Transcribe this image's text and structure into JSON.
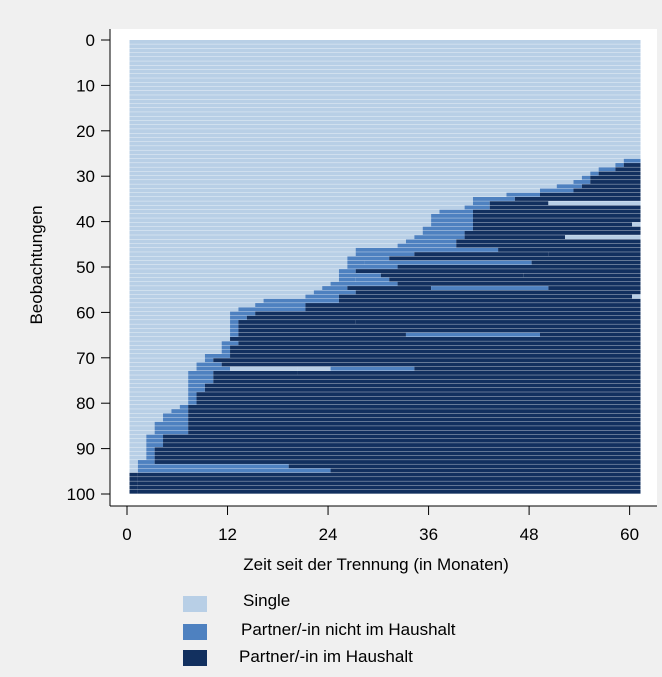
{
  "chart_data": {
    "type": "sequence-index",
    "xlabel": "Zeit seit der Trennung (in Monaten)",
    "ylabel": "Beobachtungen",
    "xlim": [
      0,
      61
    ],
    "ylim": [
      100,
      0
    ],
    "xticks": [
      0,
      12,
      24,
      36,
      48,
      60
    ],
    "yticks": [
      0,
      10,
      20,
      30,
      40,
      50,
      60,
      70,
      80,
      90,
      100
    ],
    "n_sequences": 101,
    "n_months": 61,
    "grid": false,
    "legend_position": "bottom",
    "states": [
      {
        "code": 1,
        "name": "Single",
        "color": "#b8cfe6"
      },
      {
        "code": 2,
        "name": "Partner/-in nicht im Haushalt",
        "color": "#4e81c0"
      },
      {
        "code": 3,
        "name": "Partner/-in im Haushalt",
        "color": "#12305f"
      }
    ],
    "sequences": [
      [
        [
          0,
          61,
          1
        ]
      ],
      [
        [
          0,
          61,
          1
        ]
      ],
      [
        [
          0,
          61,
          1
        ]
      ],
      [
        [
          0,
          61,
          1
        ]
      ],
      [
        [
          0,
          61,
          1
        ]
      ],
      [
        [
          0,
          61,
          1
        ]
      ],
      [
        [
          0,
          61,
          1
        ]
      ],
      [
        [
          0,
          61,
          1
        ]
      ],
      [
        [
          0,
          61,
          1
        ]
      ],
      [
        [
          0,
          61,
          1
        ]
      ],
      [
        [
          0,
          61,
          1
        ]
      ],
      [
        [
          0,
          61,
          1
        ]
      ],
      [
        [
          0,
          61,
          1
        ]
      ],
      [
        [
          0,
          61,
          1
        ]
      ],
      [
        [
          0,
          61,
          1
        ]
      ],
      [
        [
          0,
          61,
          1
        ]
      ],
      [
        [
          0,
          61,
          1
        ]
      ],
      [
        [
          0,
          61,
          1
        ]
      ],
      [
        [
          0,
          61,
          1
        ]
      ],
      [
        [
          0,
          61,
          1
        ]
      ],
      [
        [
          0,
          61,
          1
        ]
      ],
      [
        [
          0,
          61,
          1
        ]
      ],
      [
        [
          0,
          61,
          1
        ]
      ],
      [
        [
          0,
          61,
          1
        ]
      ],
      [
        [
          0,
          61,
          1
        ]
      ],
      [
        [
          0,
          61,
          1
        ]
      ],
      [
        [
          0,
          61,
          1
        ]
      ],
      [
        [
          0,
          61,
          1
        ]
      ],
      [
        [
          0,
          59,
          1
        ],
        [
          59,
          61,
          2
        ]
      ],
      [
        [
          0,
          58,
          1
        ],
        [
          58,
          59,
          2
        ],
        [
          59,
          61,
          3
        ]
      ],
      [
        [
          0,
          56,
          1
        ],
        [
          56,
          58,
          2
        ],
        [
          58,
          61,
          3
        ]
      ],
      [
        [
          0,
          55,
          1
        ],
        [
          55,
          56,
          2
        ],
        [
          56,
          61,
          3
        ]
      ],
      [
        [
          0,
          54,
          1
        ],
        [
          54,
          55,
          2
        ],
        [
          55,
          61,
          3
        ]
      ],
      [
        [
          0,
          53,
          1
        ],
        [
          53,
          55,
          2
        ],
        [
          55,
          61,
          3
        ]
      ],
      [
        [
          0,
          51,
          1
        ],
        [
          51,
          54,
          2
        ],
        [
          54,
          61,
          3
        ]
      ],
      [
        [
          0,
          49,
          1
        ],
        [
          49,
          53,
          2
        ],
        [
          53,
          61,
          3
        ]
      ],
      [
        [
          0,
          45,
          1
        ],
        [
          45,
          49,
          2
        ],
        [
          49,
          61,
          3
        ]
      ],
      [
        [
          0,
          41,
          1
        ],
        [
          41,
          46,
          2
        ],
        [
          46,
          61,
          3
        ]
      ],
      [
        [
          0,
          41,
          1
        ],
        [
          41,
          43,
          2
        ],
        [
          43,
          50,
          3
        ],
        [
          50,
          61,
          1
        ]
      ],
      [
        [
          0,
          40,
          1
        ],
        [
          40,
          43,
          2
        ],
        [
          43,
          61,
          3
        ]
      ],
      [
        [
          0,
          37,
          1
        ],
        [
          37,
          41,
          2
        ],
        [
          41,
          61,
          3
        ]
      ],
      [
        [
          0,
          36,
          1
        ],
        [
          36,
          41,
          2
        ],
        [
          41,
          61,
          3
        ]
      ],
      [
        [
          0,
          36,
          1
        ],
        [
          36,
          41,
          2
        ],
        [
          41,
          61,
          3
        ]
      ],
      [
        [
          0,
          36,
          1
        ],
        [
          36,
          41,
          2
        ],
        [
          41,
          60,
          3
        ],
        [
          60,
          61,
          1
        ]
      ],
      [
        [
          0,
          35,
          1
        ],
        [
          35,
          41,
          2
        ],
        [
          41,
          61,
          3
        ]
      ],
      [
        [
          0,
          35,
          1
        ],
        [
          35,
          40,
          2
        ],
        [
          40,
          61,
          3
        ]
      ],
      [
        [
          0,
          34,
          1
        ],
        [
          34,
          40,
          2
        ],
        [
          40,
          52,
          3
        ],
        [
          52,
          61,
          1
        ]
      ],
      [
        [
          0,
          33,
          1
        ],
        [
          33,
          39,
          2
        ],
        [
          39,
          61,
          3
        ]
      ],
      [
        [
          0,
          32,
          1
        ],
        [
          32,
          39,
          2
        ],
        [
          39,
          61,
          3
        ]
      ],
      [
        [
          0,
          27,
          1
        ],
        [
          27,
          44,
          2
        ],
        [
          44,
          61,
          3
        ]
      ],
      [
        [
          0,
          27,
          1
        ],
        [
          27,
          34,
          2
        ],
        [
          34,
          50,
          3
        ],
        [
          50,
          61,
          3
        ]
      ],
      [
        [
          0,
          26,
          1
        ],
        [
          26,
          31,
          2
        ],
        [
          31,
          61,
          3
        ]
      ],
      [
        [
          0,
          26,
          1
        ],
        [
          26,
          28,
          2
        ],
        [
          28,
          48,
          2
        ],
        [
          48,
          61,
          3
        ]
      ],
      [
        [
          0,
          26,
          1
        ],
        [
          26,
          32,
          2
        ],
        [
          32,
          49,
          3
        ],
        [
          49,
          61,
          3
        ]
      ],
      [
        [
          0,
          25,
          1
        ],
        [
          25,
          27,
          2
        ],
        [
          27,
          61,
          3
        ]
      ],
      [
        [
          0,
          25,
          1
        ],
        [
          25,
          30,
          2
        ],
        [
          30,
          47,
          3
        ],
        [
          47,
          61,
          3
        ]
      ],
      [
        [
          0,
          25,
          1
        ],
        [
          25,
          27,
          2
        ],
        [
          27,
          31,
          2
        ],
        [
          31,
          53,
          3
        ],
        [
          53,
          61,
          3
        ]
      ],
      [
        [
          0,
          24,
          1
        ],
        [
          24,
          32,
          2
        ],
        [
          32,
          61,
          3
        ]
      ],
      [
        [
          0,
          23,
          1
        ],
        [
          23,
          26,
          2
        ],
        [
          26,
          36,
          3
        ],
        [
          36,
          50,
          2
        ],
        [
          50,
          61,
          3
        ]
      ],
      [
        [
          0,
          22,
          1
        ],
        [
          22,
          27,
          2
        ],
        [
          27,
          61,
          3
        ],
        [
          61,
          61,
          3
        ]
      ],
      [
        [
          0,
          21,
          1
        ],
        [
          21,
          25,
          2
        ],
        [
          25,
          60,
          3
        ],
        [
          60,
          61,
          1
        ]
      ],
      [
        [
          0,
          16,
          1
        ],
        [
          16,
          25,
          2
        ],
        [
          25,
          61,
          3
        ]
      ],
      [
        [
          0,
          15,
          1
        ],
        [
          15,
          21,
          2
        ],
        [
          21,
          61,
          3
        ]
      ],
      [
        [
          0,
          13,
          1
        ],
        [
          13,
          21,
          2
        ],
        [
          21,
          61,
          3
        ]
      ],
      [
        [
          0,
          12,
          1
        ],
        [
          12,
          15,
          2
        ],
        [
          15,
          61,
          3
        ]
      ],
      [
        [
          0,
          12,
          1
        ],
        [
          12,
          14,
          2
        ],
        [
          14,
          61,
          3
        ]
      ],
      [
        [
          0,
          12,
          1
        ],
        [
          12,
          13,
          2
        ],
        [
          13,
          27,
          3
        ],
        [
          27,
          61,
          3
        ]
      ],
      [
        [
          0,
          12,
          1
        ],
        [
          12,
          13,
          2
        ],
        [
          13,
          61,
          3
        ]
      ],
      [
        [
          0,
          12,
          1
        ],
        [
          12,
          13,
          2
        ],
        [
          13,
          61,
          3
        ]
      ],
      [
        [
          0,
          12,
          1
        ],
        [
          12,
          13,
          2
        ],
        [
          13,
          33,
          3
        ],
        [
          33,
          49,
          2
        ],
        [
          49,
          61,
          3
        ]
      ],
      [
        [
          0,
          12,
          1
        ],
        [
          12,
          61,
          3
        ]
      ],
      [
        [
          0,
          11,
          1
        ],
        [
          11,
          13,
          2
        ],
        [
          13,
          61,
          3
        ]
      ],
      [
        [
          0,
          11,
          1
        ],
        [
          11,
          12,
          2
        ],
        [
          12,
          61,
          3
        ]
      ],
      [
        [
          0,
          11,
          1
        ],
        [
          11,
          12,
          2
        ],
        [
          12,
          61,
          3
        ]
      ],
      [
        [
          0,
          9,
          1
        ],
        [
          9,
          12,
          2
        ],
        [
          12,
          61,
          3
        ]
      ],
      [
        [
          0,
          9,
          1
        ],
        [
          9,
          10,
          2
        ],
        [
          10,
          61,
          3
        ]
      ],
      [
        [
          0,
          8,
          1
        ],
        [
          8,
          11,
          2
        ],
        [
          11,
          61,
          3
        ]
      ],
      [
        [
          0,
          8,
          1
        ],
        [
          8,
          12,
          2
        ],
        [
          12,
          20,
          1
        ],
        [
          20,
          24,
          1
        ],
        [
          24,
          34,
          2
        ],
        [
          34,
          61,
          3
        ]
      ],
      [
        [
          0,
          7,
          1
        ],
        [
          7,
          10,
          2
        ],
        [
          10,
          20,
          3
        ],
        [
          20,
          61,
          3
        ]
      ],
      [
        [
          0,
          7,
          1
        ],
        [
          7,
          10,
          2
        ],
        [
          10,
          61,
          3
        ]
      ],
      [
        [
          0,
          7,
          1
        ],
        [
          7,
          10,
          2
        ],
        [
          10,
          61,
          3
        ]
      ],
      [
        [
          0,
          7,
          1
        ],
        [
          7,
          9,
          2
        ],
        [
          9,
          61,
          3
        ]
      ],
      [
        [
          0,
          7,
          1
        ],
        [
          7,
          9,
          2
        ],
        [
          9,
          61,
          3
        ]
      ],
      [
        [
          0,
          7,
          1
        ],
        [
          7,
          8,
          2
        ],
        [
          8,
          61,
          3
        ]
      ],
      [
        [
          0,
          7,
          1
        ],
        [
          7,
          8,
          2
        ],
        [
          8,
          61,
          3
        ]
      ],
      [
        [
          0,
          7,
          1
        ],
        [
          7,
          8,
          2
        ],
        [
          8,
          61,
          3
        ]
      ],
      [
        [
          0,
          6,
          1
        ],
        [
          6,
          7,
          2
        ],
        [
          7,
          61,
          3
        ]
      ],
      [
        [
          0,
          5,
          1
        ],
        [
          5,
          7,
          2
        ],
        [
          7,
          61,
          3
        ]
      ],
      [
        [
          0,
          4,
          1
        ],
        [
          4,
          7,
          2
        ],
        [
          7,
          61,
          3
        ]
      ],
      [
        [
          0,
          4,
          1
        ],
        [
          4,
          7,
          2
        ],
        [
          7,
          61,
          3
        ]
      ],
      [
        [
          0,
          3,
          1
        ],
        [
          3,
          7,
          2
        ],
        [
          7,
          61,
          3
        ]
      ],
      [
        [
          0,
          3,
          1
        ],
        [
          3,
          7,
          2
        ],
        [
          7,
          61,
          3
        ]
      ],
      [
        [
          0,
          3,
          1
        ],
        [
          3,
          7,
          2
        ],
        [
          7,
          61,
          3
        ]
      ],
      [
        [
          0,
          2,
          1
        ],
        [
          2,
          4,
          2
        ],
        [
          4,
          61,
          3
        ]
      ],
      [
        [
          0,
          2,
          1
        ],
        [
          2,
          4,
          2
        ],
        [
          4,
          61,
          3
        ]
      ],
      [
        [
          0,
          2,
          1
        ],
        [
          2,
          4,
          2
        ],
        [
          4,
          61,
          3
        ]
      ],
      [
        [
          0,
          2,
          1
        ],
        [
          2,
          3,
          2
        ],
        [
          3,
          61,
          3
        ]
      ],
      [
        [
          0,
          2,
          1
        ],
        [
          2,
          3,
          2
        ],
        [
          3,
          61,
          3
        ]
      ],
      [
        [
          0,
          2,
          1
        ],
        [
          2,
          3,
          2
        ],
        [
          3,
          61,
          3
        ]
      ],
      [
        [
          0,
          1,
          1
        ],
        [
          1,
          3,
          2
        ],
        [
          3,
          61,
          3
        ]
      ],
      [
        [
          0,
          1,
          1
        ],
        [
          1,
          19,
          2
        ],
        [
          19,
          61,
          3
        ]
      ],
      [
        [
          0,
          1,
          1
        ],
        [
          1,
          24,
          2
        ],
        [
          24,
          61,
          3
        ]
      ],
      [
        [
          0,
          1,
          3
        ],
        [
          1,
          61,
          3
        ]
      ],
      [
        [
          0,
          1,
          3
        ],
        [
          1,
          61,
          3
        ]
      ],
      [
        [
          0,
          1,
          3
        ],
        [
          1,
          61,
          3
        ]
      ],
      [
        [
          0,
          1,
          3
        ],
        [
          1,
          61,
          3
        ]
      ],
      [
        [
          0,
          1,
          3
        ],
        [
          1,
          61,
          3
        ]
      ]
    ]
  }
}
